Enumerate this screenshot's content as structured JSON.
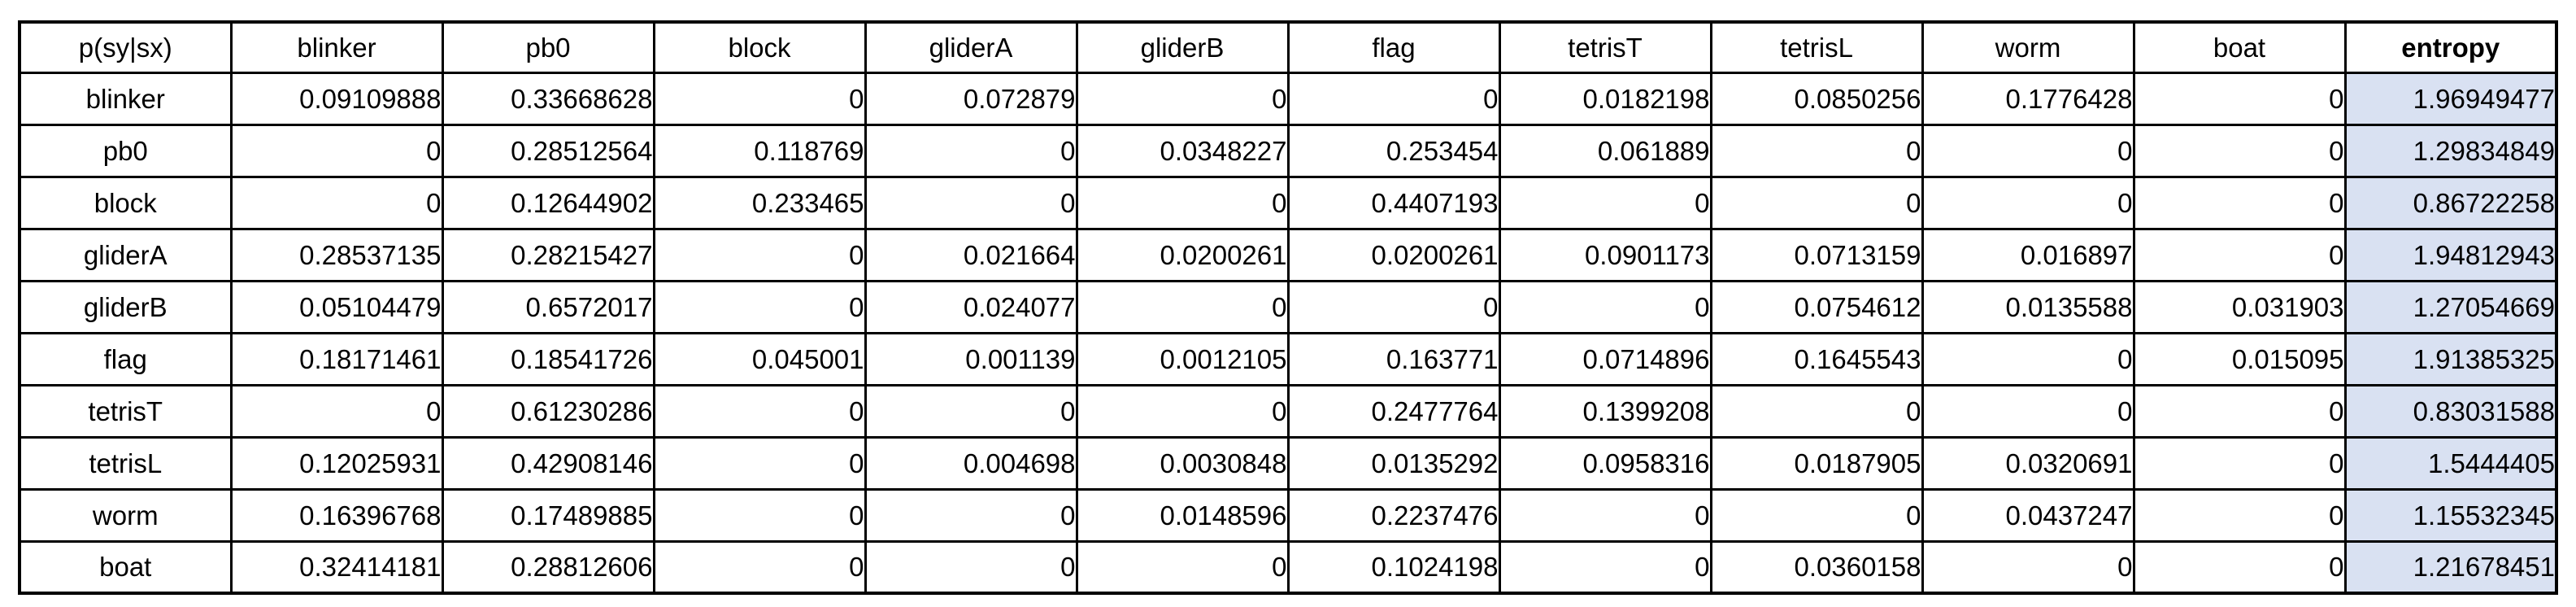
{
  "style": {
    "entropy_fill": "#d9e1f2",
    "border_color": "#000000",
    "background": "#ffffff",
    "highlight_column": "entropy"
  },
  "chart_data": {
    "type": "table",
    "corner_label": "p(sy|sx)",
    "columns": [
      "blinker",
      "pb0",
      "block",
      "gliderA",
      "gliderB",
      "flag",
      "tetrisT",
      "tetrisL",
      "worm",
      "boat",
      "entropy"
    ],
    "rows": [
      {
        "label": "blinker",
        "values": [
          "0.09109888",
          "0.33668628",
          "0",
          "0.072879",
          "0",
          "0",
          "0.0182198",
          "0.0850256",
          "0.1776428",
          "0",
          "1.96949477"
        ]
      },
      {
        "label": "pb0",
        "values": [
          "0",
          "0.28512564",
          "0.118769",
          "0",
          "0.0348227",
          "0.253454",
          "0.061889",
          "0",
          "0",
          "0",
          "1.29834849"
        ]
      },
      {
        "label": "block",
        "values": [
          "0",
          "0.12644902",
          "0.233465",
          "0",
          "0",
          "0.4407193",
          "0",
          "0",
          "0",
          "0",
          "0.86722258"
        ]
      },
      {
        "label": "gliderA",
        "values": [
          "0.28537135",
          "0.28215427",
          "0",
          "0.021664",
          "0.0200261",
          "0.0200261",
          "0.0901173",
          "0.0713159",
          "0.016897",
          "0",
          "1.94812943"
        ]
      },
      {
        "label": "gliderB",
        "values": [
          "0.05104479",
          "0.6572017",
          "0",
          "0.024077",
          "0",
          "0",
          "0",
          "0.0754612",
          "0.0135588",
          "0.031903",
          "1.27054669"
        ]
      },
      {
        "label": "flag",
        "values": [
          "0.18171461",
          "0.18541726",
          "0.045001",
          "0.001139",
          "0.0012105",
          "0.163771",
          "0.0714896",
          "0.1645543",
          "0",
          "0.015095",
          "1.91385325"
        ]
      },
      {
        "label": "tetrisT",
        "values": [
          "0",
          "0.61230286",
          "0",
          "0",
          "0",
          "0.2477764",
          "0.1399208",
          "0",
          "0",
          "0",
          "0.83031588"
        ]
      },
      {
        "label": "tetrisL",
        "values": [
          "0.12025931",
          "0.42908146",
          "0",
          "0.004698",
          "0.0030848",
          "0.0135292",
          "0.0958316",
          "0.0187905",
          "0.0320691",
          "0",
          "1.5444405"
        ]
      },
      {
        "label": "worm",
        "values": [
          "0.16396768",
          "0.17489885",
          "0",
          "0",
          "0.0148596",
          "0.2237476",
          "0",
          "0",
          "0.0437247",
          "0",
          "1.15532345"
        ]
      },
      {
        "label": "boat",
        "values": [
          "0.32414181",
          "0.28812606",
          "0",
          "0",
          "0",
          "0.1024198",
          "0",
          "0.0360158",
          "0",
          "0",
          "1.21678451"
        ]
      }
    ]
  }
}
